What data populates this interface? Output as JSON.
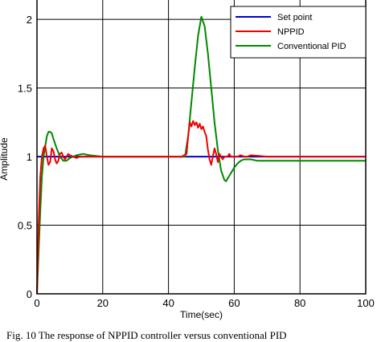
{
  "caption": "Fig. 10 The response of NPPID controller versus conventional PID",
  "chart_data": {
    "type": "line",
    "title": "",
    "xlabel": "Time(sec)",
    "ylabel": "Amplitude",
    "xlim": [
      0,
      100
    ],
    "ylim": [
      0,
      2.2
    ],
    "xticks": [
      0,
      20,
      40,
      60,
      80,
      100
    ],
    "yticks": [
      0,
      0.5,
      1,
      1.5,
      2
    ],
    "xtick_labels": [
      "0",
      "20",
      "40",
      "60",
      "80",
      "100"
    ],
    "ytick_labels": [
      "0",
      "0.5",
      "1",
      "1.5",
      "2"
    ],
    "grid": true,
    "legend_position": "top-right",
    "series": [
      {
        "name": "Set point",
        "color": "#0000cc",
        "x": [
          0,
          100
        ],
        "y": [
          1,
          1
        ]
      },
      {
        "name": "NPPID",
        "color": "#ee0000",
        "x": [
          0,
          0.5,
          1,
          1.5,
          2,
          2.5,
          3,
          3.5,
          4,
          4.5,
          5,
          5.5,
          6,
          6.5,
          7,
          7.5,
          8,
          8.5,
          9,
          9.5,
          10,
          11,
          12,
          13,
          15,
          20,
          30,
          40,
          44,
          45.5,
          46,
          46.5,
          47,
          47.5,
          48,
          48.5,
          49,
          49.5,
          50,
          50.5,
          51,
          51.5,
          52,
          52.5,
          53,
          53.5,
          54,
          54.5,
          55,
          55.5,
          56,
          56.5,
          57,
          57.5,
          58,
          58.5,
          59,
          60,
          61,
          62,
          63,
          64,
          65,
          70,
          80,
          100
        ],
        "y": [
          0,
          0.5,
          0.85,
          1.0,
          1.06,
          1.08,
          1.0,
          0.94,
          0.96,
          1.06,
          1.04,
          0.98,
          0.95,
          0.97,
          1.02,
          1.03,
          1.0,
          0.98,
          1.0,
          1.02,
          1.01,
          1.0,
          0.99,
          1.0,
          1.0,
          1.0,
          1.0,
          1.0,
          1.0,
          1.02,
          1.15,
          1.25,
          1.22,
          1.26,
          1.23,
          1.25,
          1.21,
          1.24,
          1.2,
          1.22,
          1.18,
          1.15,
          1.05,
          0.98,
          0.94,
          1.0,
          1.06,
          1.02,
          0.96,
          1.02,
          1.0,
          0.98,
          1.0,
          1.0,
          1.0,
          1.02,
          1.0,
          1.0,
          1.0,
          1.01,
          1.0,
          1.0,
          1.01,
          1.0,
          1.0,
          1.0
        ]
      },
      {
        "name": "Conventional PID",
        "color": "#008800",
        "x": [
          0,
          0.5,
          1,
          1.5,
          2,
          3,
          3.5,
          4,
          4.5,
          5,
          6,
          7,
          8,
          9,
          10,
          12,
          14,
          16,
          20,
          30,
          40,
          45,
          46,
          47,
          48,
          49,
          50,
          51,
          52,
          53,
          54,
          55,
          56,
          57,
          57.5,
          58,
          59,
          60,
          61,
          62,
          63,
          65,
          67,
          70,
          80,
          90,
          100
        ],
        "y": [
          0,
          0.3,
          0.6,
          0.85,
          1.0,
          1.15,
          1.18,
          1.18,
          1.17,
          1.13,
          1.06,
          1.0,
          0.97,
          0.97,
          0.99,
          1.01,
          1.02,
          1.01,
          1.0,
          1.0,
          1.0,
          1.0,
          1.15,
          1.4,
          1.65,
          1.88,
          2.02,
          1.95,
          1.75,
          1.5,
          1.25,
          1.05,
          0.9,
          0.83,
          0.82,
          0.84,
          0.88,
          0.92,
          0.95,
          0.97,
          0.98,
          0.98,
          0.97,
          0.97,
          0.97,
          0.97,
          0.97
        ]
      }
    ]
  }
}
